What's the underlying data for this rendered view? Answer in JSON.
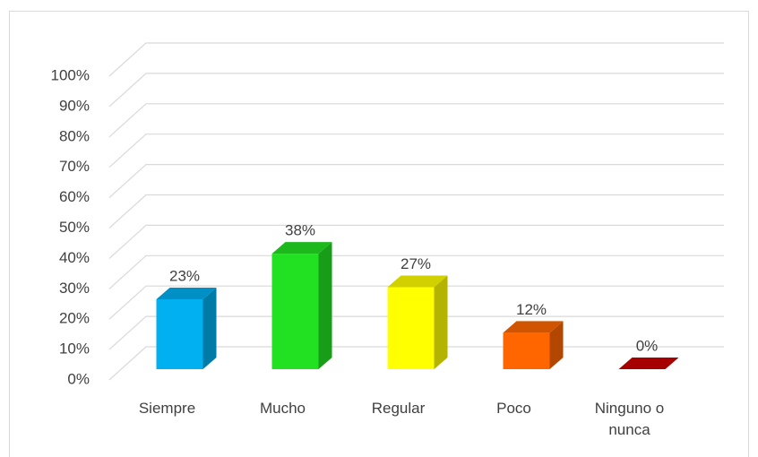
{
  "chart_data": {
    "type": "bar3d",
    "categories": [
      "Siempre",
      "Mucho",
      "Regular",
      "Poco",
      "Ninguno o nunca"
    ],
    "values": [
      23,
      38,
      27,
      12,
      0
    ],
    "value_labels": [
      "23%",
      "38%",
      "27%",
      "12%",
      "0%"
    ],
    "colors": [
      "#00b0f0",
      "#22e022",
      "#ffff00",
      "#ff6600",
      "#cc0000"
    ],
    "ylim": [
      0,
      100
    ],
    "yticks": [
      {
        "value": 0,
        "label": "0%"
      },
      {
        "value": 10,
        "label": "10%"
      },
      {
        "value": 20,
        "label": "20%"
      },
      {
        "value": 30,
        "label": "30%"
      },
      {
        "value": 40,
        "label": "40%"
      },
      {
        "value": 50,
        "label": "50%"
      },
      {
        "value": 60,
        "label": "60%"
      },
      {
        "value": 70,
        "label": "70%"
      },
      {
        "value": 80,
        "label": "80%"
      },
      {
        "value": 90,
        "label": "90%"
      },
      {
        "value": 100,
        "label": "100%"
      }
    ],
    "grid": true
  }
}
